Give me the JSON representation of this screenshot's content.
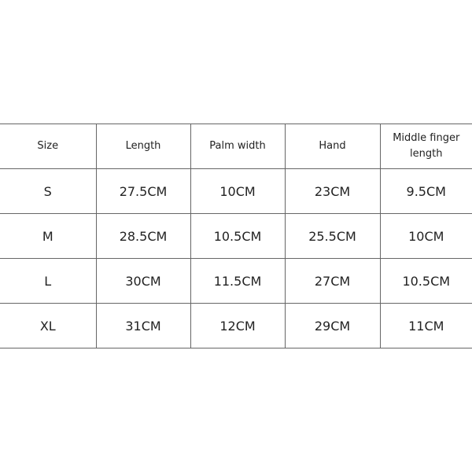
{
  "table": {
    "header": [
      "Size",
      "Length",
      "Palm width",
      "Hand",
      "Middle finger length"
    ],
    "rows": [
      [
        "S",
        "27.5CM",
        "10CM",
        "23CM",
        "9.5CM"
      ],
      [
        "M",
        "28.5CM",
        "10.5CM",
        "25.5CM",
        "10CM"
      ],
      [
        "L",
        "30CM",
        "11.5CM",
        "27CM",
        "10.5CM"
      ],
      [
        "XL",
        "31CM",
        "12CM",
        "29CM",
        "11CM"
      ]
    ]
  }
}
